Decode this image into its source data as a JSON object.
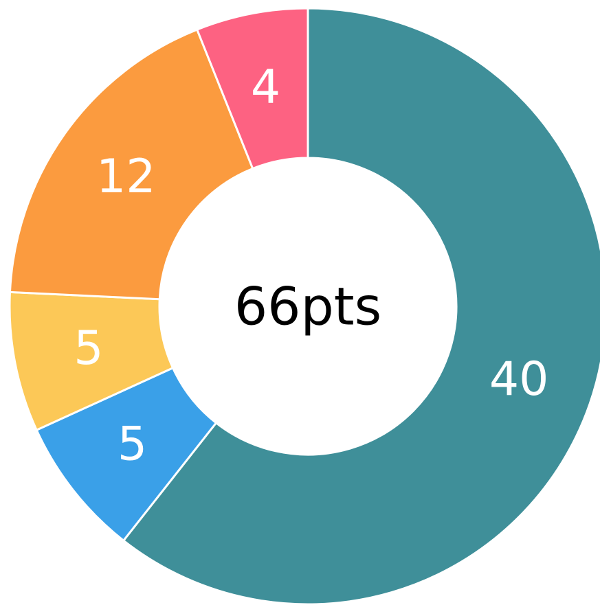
{
  "chart_data": {
    "type": "donut",
    "values": [
      40,
      5,
      5,
      12,
      4
    ],
    "colors": [
      "#3f8f99",
      "#3aa0e8",
      "#fcc857",
      "#fb9b3f",
      "#fd6282"
    ],
    "center_label": "66pts"
  }
}
